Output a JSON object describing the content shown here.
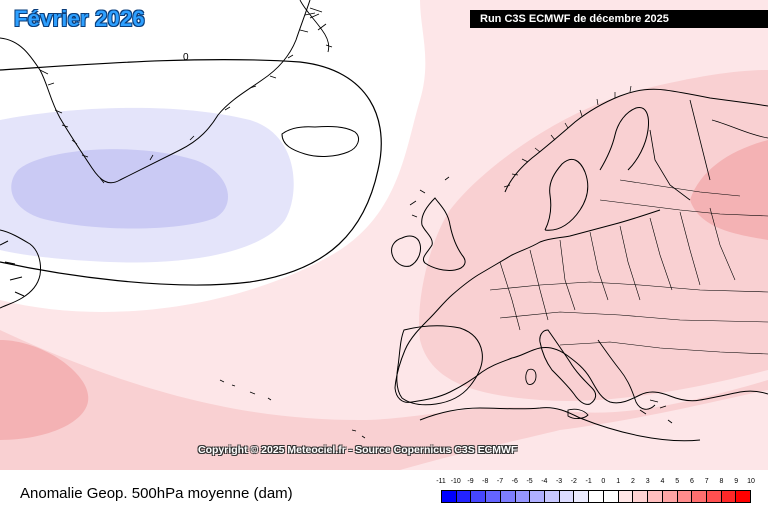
{
  "title": "Février 2026",
  "run_label": "Run C3S ECMWF de décembre 2025",
  "copyright": "Copyright © 2025 Meteociel.fr - Source Copernicus C3S ECMWF",
  "variable_label": "Anomalie Geop. 500hPa moyenne (dam)",
  "contour_label": "0",
  "legend": {
    "labels": [
      "-11",
      "-10",
      "-9",
      "-8",
      "-7",
      "-6",
      "-5",
      "-4",
      "-3",
      "-2",
      "-1",
      "0",
      "1",
      "2",
      "3",
      "4",
      "5",
      "6",
      "7",
      "8",
      "9",
      "10"
    ],
    "colors": [
      "#0000ff",
      "#2323ff",
      "#4646ff",
      "#6464ff",
      "#7d7dff",
      "#9696ff",
      "#afafff",
      "#c8c8ff",
      "#dcdcff",
      "#ebebff",
      "#ffffff",
      "#ffffff",
      "#ffe6e6",
      "#ffd2d2",
      "#ffbebe",
      "#ffa5a5",
      "#ff8c8c",
      "#ff6e6e",
      "#ff5050",
      "#ff2828",
      "#ff0000"
    ]
  },
  "map": {
    "region": "Atlantique Nord et Europe",
    "fill_colors": {
      "blue_light": "#e4e4fa",
      "blue_mid": "#cacaf4",
      "pink_1": "#fde6e8",
      "pink_2": "#f9d0d2",
      "pink_3": "#f4b2b4",
      "coast": "#000000"
    }
  }
}
